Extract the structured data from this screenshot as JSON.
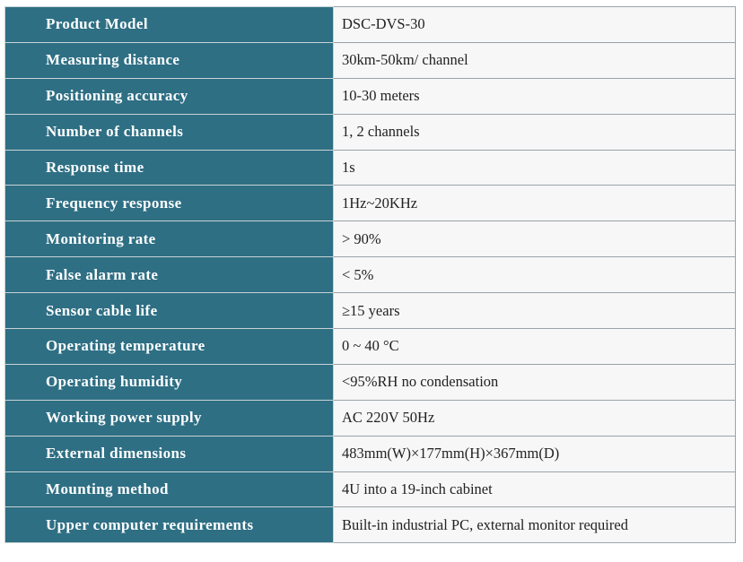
{
  "table": {
    "rows": [
      [
        "Product Model",
        "DSC-DVS-30"
      ],
      [
        "Measuring distance",
        "30km-50km/ channel"
      ],
      [
        "Positioning accuracy",
        "10-30 meters"
      ],
      [
        "Number of channels",
        "1, 2 channels"
      ],
      [
        "Response time",
        "1s"
      ],
      [
        "Frequency response",
        "1Hz~20KHz"
      ],
      [
        "Monitoring rate",
        "> 90%"
      ],
      [
        "False alarm rate",
        "< 5%"
      ],
      [
        "Sensor cable life",
        "≥15 years"
      ],
      [
        "Operating temperature",
        "0 ~ 40 °C"
      ],
      [
        "Operating humidity",
        "<95%RH no condensation"
      ],
      [
        "Working power supply",
        "AC 220V 50Hz"
      ],
      [
        "External dimensions",
        "483mm(W)×177mm(H)×367mm(D)"
      ],
      [
        "Mounting method",
        "4U into a 19-inch cabinet"
      ],
      [
        "Upper computer requirements",
        "Built-in industrial PC, external monitor required"
      ]
    ]
  }
}
